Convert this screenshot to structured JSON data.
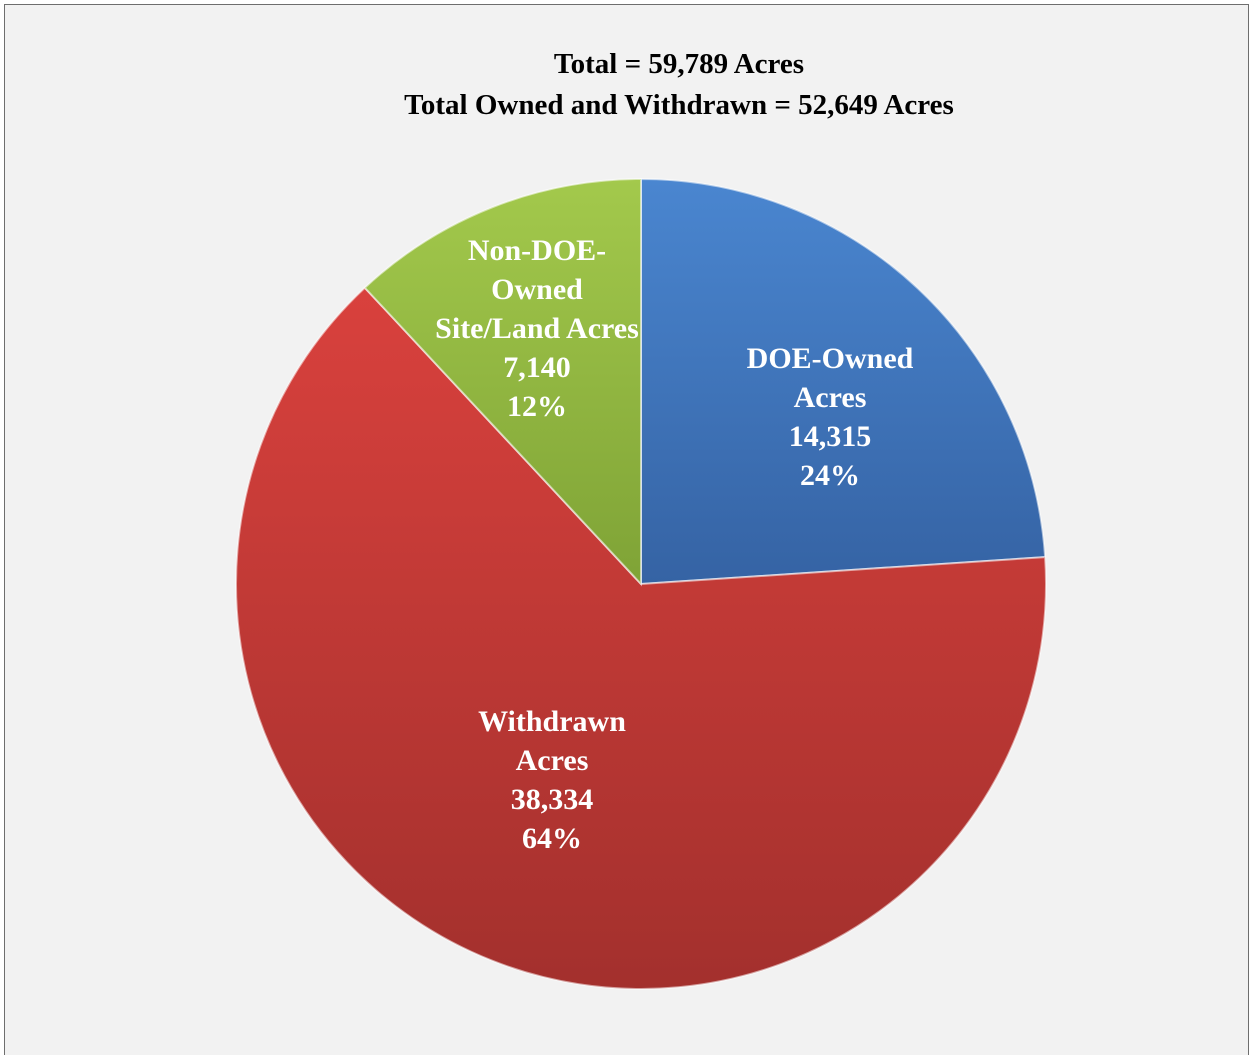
{
  "chart_data": {
    "type": "pie",
    "title": "Total = 59,789 Acres",
    "subtitle": "Total Owned and Withdrawn = 52,649 Acres",
    "total": 59789,
    "slices": [
      {
        "label_lines": [
          "DOE-Owned",
          "Acres",
          "14,315",
          "24%"
        ],
        "value": 14315,
        "percent": 24,
        "color": "#4a86d0",
        "color_dark": "#3563a4"
      },
      {
        "label_lines": [
          "Withdrawn",
          "Acres",
          "38,334",
          "64%"
        ],
        "value": 38334,
        "percent": 64,
        "color": "#d9413d",
        "color_dark": "#a3302d"
      },
      {
        "label_lines": [
          "Non-DOE-",
          "Owned",
          "Site/Land Acres",
          "7,140",
          "12%"
        ],
        "value": 7140,
        "percent": 12,
        "color": "#a3c94c",
        "color_dark": "#7fa336"
      }
    ]
  }
}
